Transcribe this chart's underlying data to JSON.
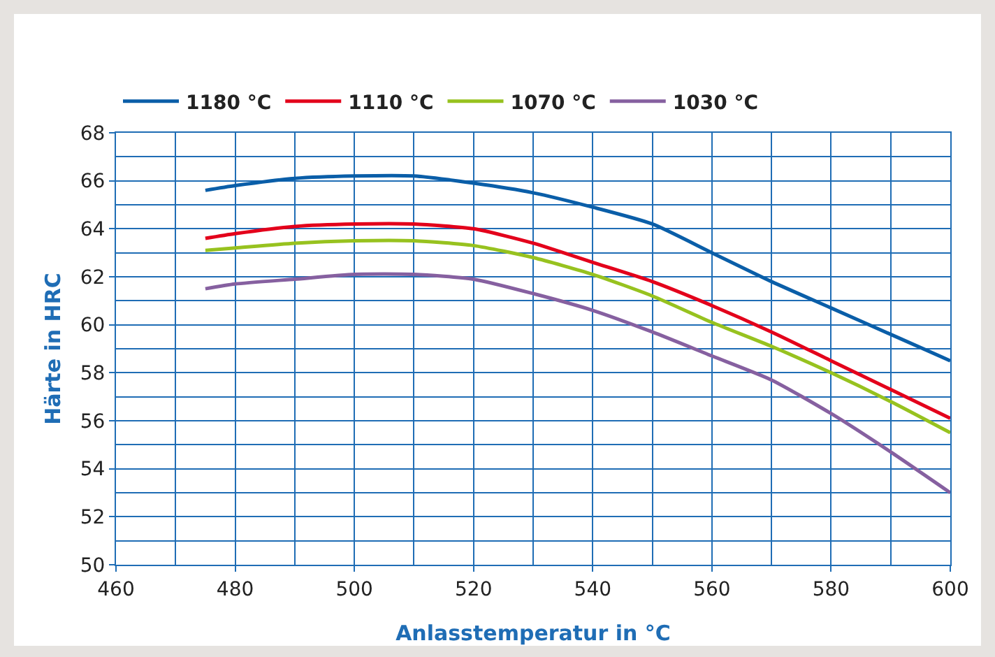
{
  "chart_data": {
    "type": "line",
    "xlabel": "Anlasstemperatur in °C",
    "ylabel": "Härte in HRC",
    "x": [
      475,
      480,
      490,
      500,
      510,
      520,
      530,
      540,
      550,
      560,
      570,
      580,
      590,
      600
    ],
    "series": [
      {
        "name": "1180 °C",
        "color": "#0a5ea8",
        "values": [
          65.6,
          65.8,
          66.1,
          66.2,
          66.2,
          65.9,
          65.5,
          64.9,
          64.2,
          63.0,
          61.8,
          60.7,
          59.6,
          58.5
        ]
      },
      {
        "name": "1110 °C",
        "color": "#e3001b",
        "values": [
          63.6,
          63.8,
          64.1,
          64.2,
          64.2,
          64.0,
          63.4,
          62.6,
          61.8,
          60.8,
          59.7,
          58.5,
          57.3,
          56.1
        ]
      },
      {
        "name": "1070 °C",
        "color": "#97c21f",
        "values": [
          63.1,
          63.2,
          63.4,
          63.5,
          63.5,
          63.3,
          62.8,
          62.1,
          61.2,
          60.1,
          59.1,
          58.0,
          56.8,
          55.5
        ]
      },
      {
        "name": "1030 °C",
        "color": "#8660a0",
        "values": [
          61.5,
          61.7,
          61.9,
          62.1,
          62.1,
          61.9,
          61.3,
          60.6,
          59.7,
          58.7,
          57.7,
          56.3,
          54.7,
          53.0
        ]
      }
    ],
    "xlim": [
      460,
      600
    ],
    "xticks": [
      460,
      480,
      500,
      520,
      540,
      560,
      580,
      600
    ],
    "ylim": [
      50,
      68
    ],
    "yticks": [
      50,
      52,
      54,
      56,
      58,
      60,
      62,
      64,
      66,
      68
    ],
    "grid": true,
    "legend": "top left",
    "marker": "none",
    "line_style": "solid"
  }
}
